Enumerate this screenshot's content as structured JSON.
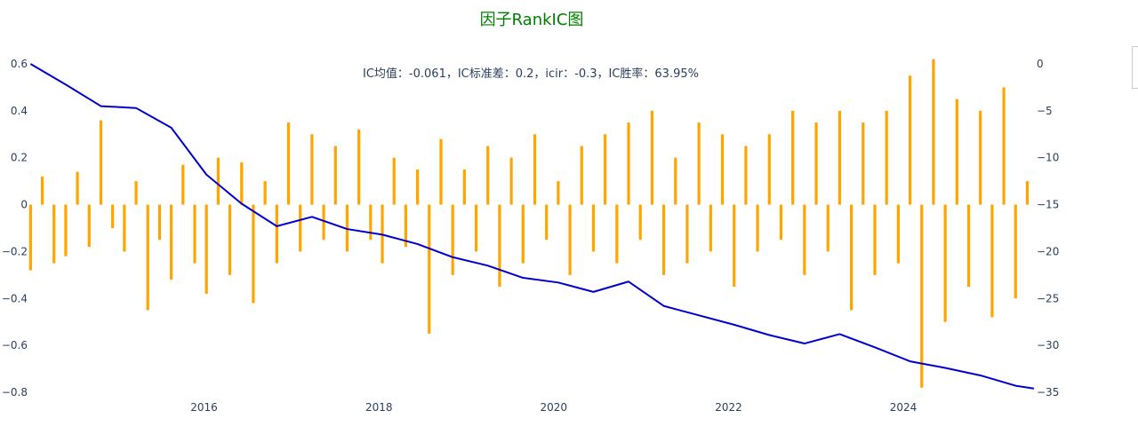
{
  "chart_data": {
    "type": "bar+line",
    "title": "因子RankIC图",
    "annotation": "IC均值：-0.061，IC标准差：0.2，icir：-0.3，IC胜率：63.95%",
    "x_range": [
      "2014-01-01",
      "2025-06-30"
    ],
    "x_ticks": [
      "2016",
      "2018",
      "2020",
      "2022",
      "2024"
    ],
    "x_tick_dates": [
      "2016-01-01",
      "2018-01-01",
      "2020-01-01",
      "2022-01-01",
      "2024-01-01"
    ],
    "y_left_range": [
      -0.8,
      0.6
    ],
    "y_left_ticks": [
      "−0.8",
      "−0.6",
      "−0.4",
      "−0.2",
      "0",
      "0.2",
      "0.4",
      "0.6"
    ],
    "y_left_tick_values": [
      -0.8,
      -0.6,
      -0.4,
      -0.2,
      0,
      0.2,
      0.4,
      0.6
    ],
    "y_right_range": [
      -35,
      0
    ],
    "y_right_ticks": [
      "−35",
      "−30",
      "−25",
      "−20",
      "−15",
      "−10",
      "−5",
      "0"
    ],
    "y_right_tick_values": [
      -35,
      -30,
      -25,
      -20,
      -15,
      -10,
      -5,
      0
    ],
    "grid": false,
    "colors": {
      "title": "#008000",
      "bars": "#ffa500",
      "line": "#0000cd",
      "text": "#2a3f5f"
    },
    "series": [
      {
        "type": "bar",
        "axis": "left",
        "x": [
          "2014-01-06",
          "2014-02-24",
          "2014-04-14",
          "2014-06-02",
          "2014-07-21",
          "2014-09-08",
          "2014-10-27",
          "2014-12-15",
          "2015-02-02",
          "2015-03-23",
          "2015-05-11",
          "2015-06-29",
          "2015-08-17",
          "2015-10-05",
          "2015-11-23",
          "2016-01-11",
          "2016-02-29",
          "2016-04-18",
          "2016-06-06",
          "2016-07-25",
          "2016-09-12",
          "2016-10-31",
          "2016-12-19",
          "2017-02-06",
          "2017-03-27",
          "2017-05-15",
          "2017-07-03",
          "2017-08-21",
          "2017-10-09",
          "2017-11-27",
          "2018-01-15",
          "2018-03-05",
          "2018-04-23",
          "2018-06-11",
          "2018-07-30",
          "2018-09-17",
          "2018-11-05",
          "2018-12-24",
          "2019-02-11",
          "2019-04-01",
          "2019-05-20",
          "2019-07-08",
          "2019-08-26",
          "2019-10-14",
          "2019-12-02",
          "2020-01-20",
          "2020-03-09",
          "2020-04-27",
          "2020-06-15",
          "2020-08-03",
          "2020-09-21",
          "2020-11-09",
          "2020-12-28",
          "2021-02-15",
          "2021-04-05",
          "2021-05-24",
          "2021-07-12",
          "2021-08-30",
          "2021-10-18",
          "2021-12-06",
          "2022-01-24",
          "2022-03-14",
          "2022-05-02",
          "2022-06-20",
          "2022-08-08",
          "2022-09-26",
          "2022-11-14",
          "2023-01-02",
          "2023-02-20",
          "2023-04-10",
          "2023-05-29",
          "2023-07-17",
          "2023-09-04",
          "2023-10-23",
          "2023-12-11",
          "2024-01-29",
          "2024-03-18",
          "2024-05-06",
          "2024-06-24",
          "2024-08-12",
          "2024-09-30",
          "2024-11-18",
          "2025-01-06",
          "2025-02-24",
          "2025-04-14",
          "2025-06-02"
        ],
        "values": [
          -0.28,
          0.12,
          -0.25,
          -0.22,
          0.14,
          -0.18,
          0.36,
          -0.1,
          -0.2,
          0.1,
          -0.45,
          -0.15,
          -0.32,
          0.17,
          -0.25,
          -0.38,
          0.2,
          -0.3,
          0.18,
          -0.42,
          0.1,
          -0.25,
          0.35,
          -0.2,
          0.3,
          -0.15,
          0.25,
          -0.2,
          0.32,
          -0.15,
          -0.25,
          0.2,
          -0.18,
          0.15,
          -0.55,
          0.28,
          -0.3,
          0.15,
          -0.2,
          0.25,
          -0.35,
          0.2,
          -0.25,
          0.3,
          -0.15,
          0.1,
          -0.3,
          0.25,
          -0.2,
          0.3,
          -0.25,
          0.35,
          -0.15,
          0.4,
          -0.3,
          0.2,
          -0.25,
          0.35,
          -0.2,
          0.3,
          -0.35,
          0.25,
          -0.2,
          0.3,
          -0.15,
          0.4,
          -0.3,
          0.35,
          -0.2,
          0.4,
          -0.45,
          0.35,
          -0.3,
          0.4,
          -0.25,
          0.55,
          -0.78,
          0.62,
          -0.5,
          0.45,
          -0.35,
          0.4,
          -0.48,
          0.5,
          -0.4,
          0.1
        ]
      },
      {
        "type": "line",
        "axis": "right",
        "x": [
          "2014-01-06",
          "2014-06-02",
          "2014-10-27",
          "2015-03-23",
          "2015-08-17",
          "2016-01-11",
          "2016-06-06",
          "2016-10-31",
          "2017-03-27",
          "2017-08-21",
          "2018-01-15",
          "2018-06-11",
          "2018-11-05",
          "2019-04-01",
          "2019-08-26",
          "2020-01-20",
          "2020-06-15",
          "2020-11-09",
          "2021-04-05",
          "2021-08-30",
          "2022-01-24",
          "2022-06-20",
          "2022-11-14",
          "2023-04-10",
          "2023-09-04",
          "2024-01-29",
          "2024-06-24",
          "2024-11-18",
          "2025-04-14",
          "2025-06-30"
        ],
        "values": [
          0,
          -2.2,
          -4.5,
          -4.7,
          -6.8,
          -11.8,
          -14.9,
          -17.3,
          -16.3,
          -17.6,
          -18.2,
          -19.2,
          -20.6,
          -21.5,
          -22.8,
          -23.3,
          -24.3,
          -23.2,
          -25.8,
          -26.8,
          -27.8,
          -28.9,
          -29.8,
          -28.8,
          -30.2,
          -31.7,
          -32.4,
          -33.2,
          -34.3,
          -34.6
        ]
      }
    ]
  }
}
